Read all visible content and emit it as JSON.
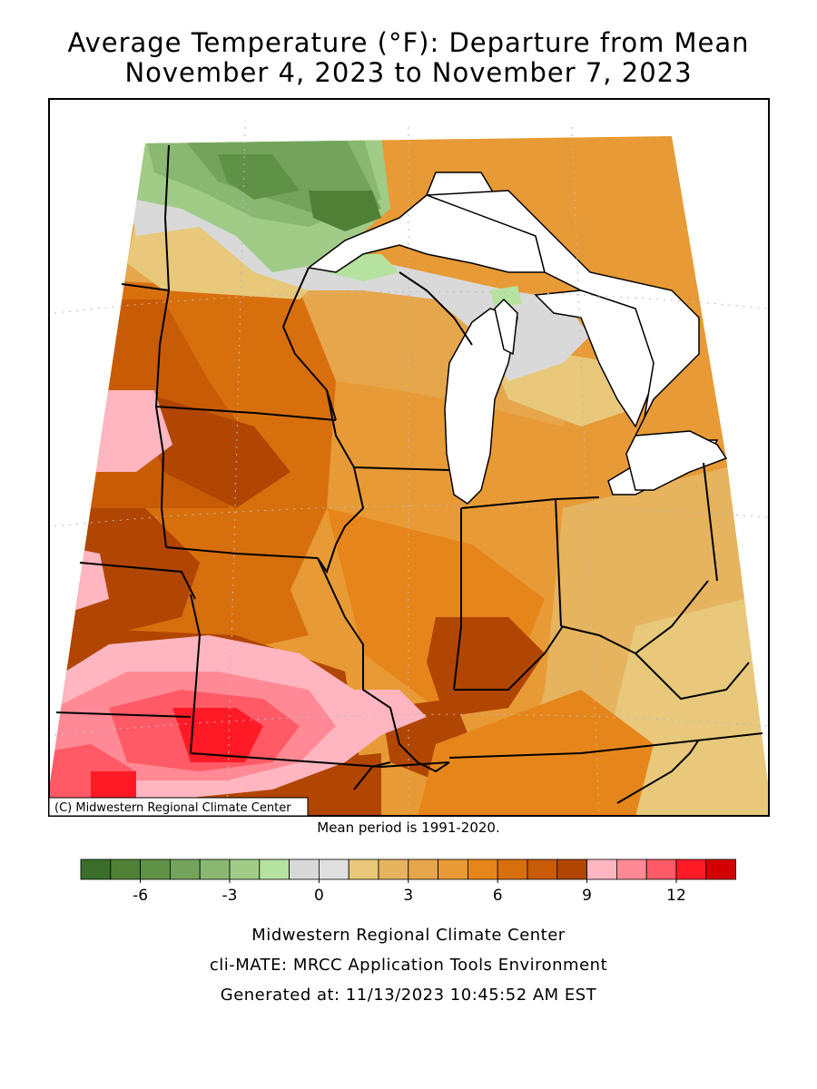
{
  "title_line1": "Average Temperature (°F): Departure from Mean",
  "title_line2": "November 4, 2023 to November 7, 2023",
  "copyright": "(C) Midwestern Regional Climate Center",
  "mean_period": "Mean period is 1991-2020.",
  "legend": {
    "colors": [
      "#3a6e2a",
      "#4f8036",
      "#5f9147",
      "#74a45c",
      "#8ab873",
      "#a0cc88",
      "#b6e2a0",
      "#d9d9d9",
      "#e0e0e0",
      "#e8c87a",
      "#e6b35f",
      "#e6a64b",
      "#e79a35",
      "#e6861a",
      "#d86f0d",
      "#c85b06",
      "#b14502",
      "#ffb6c1",
      "#ff8a95",
      "#ff5a66",
      "#ff1a26",
      "#d40000"
    ],
    "tick_labels": [
      "-6",
      "-3",
      "0",
      "3",
      "6",
      "9",
      "12"
    ]
  },
  "footer": {
    "line1": "Midwestern Regional Climate Center",
    "line2": "cli-MATE: MRCC Application Tools Environment",
    "line3": "Generated at: 11/13/2023 10:45:52 AM EST"
  }
}
